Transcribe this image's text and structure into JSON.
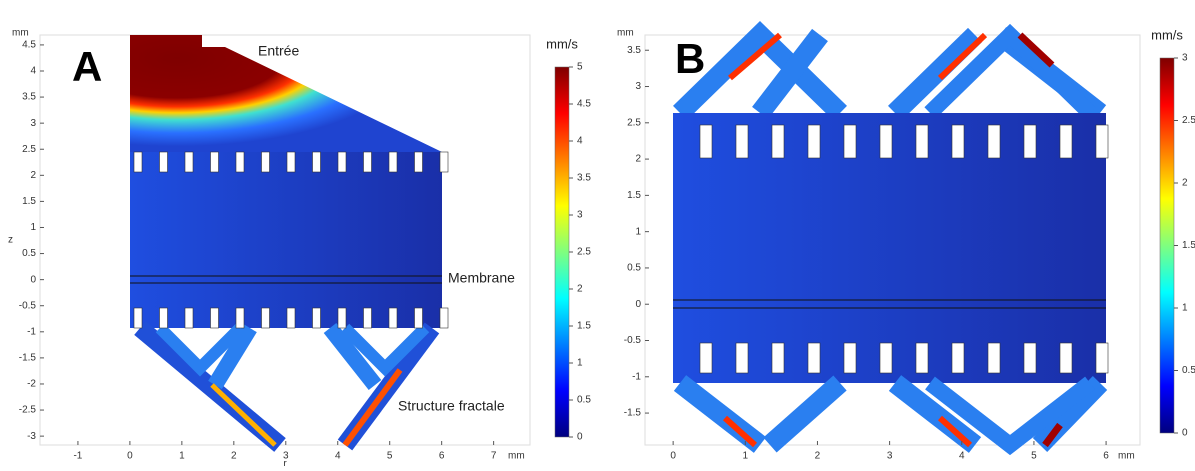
{
  "chart_data": [
    {
      "type": "field",
      "label": "A",
      "x_unit": "mm",
      "y_unit": "mm",
      "xlabel": "r",
      "ylabel": "z",
      "xlim": [
        -1.73,
        7.7
      ],
      "ylim": [
        -3.17,
        4.69
      ],
      "xticks": [
        -1,
        0,
        1,
        2,
        3,
        4,
        5,
        6,
        7
      ],
      "yticks": [
        4.5,
        4,
        3.5,
        3,
        2.5,
        2,
        1.5,
        1,
        0.5,
        0,
        -0.5,
        -1,
        -1.5,
        -2,
        -2.5,
        -3
      ],
      "colorbar": {
        "title": "mm/s",
        "lim": [
          0,
          5
        ],
        "ticks": [
          0,
          0.5,
          1,
          1.5,
          2,
          2.5,
          3,
          3.5,
          4,
          4.5,
          5
        ],
        "colors": [
          "#00007f",
          "#0000ff",
          "#007fff",
          "#00ffff",
          "#7fff7f",
          "#ffff00",
          "#ff7f00",
          "#ff0000",
          "#7f0000"
        ]
      },
      "annotations": [
        "Entrée",
        "Membrane",
        "Structure fractale"
      ]
    },
    {
      "type": "field",
      "label": "B",
      "x_unit": "mm",
      "y_unit": "mm",
      "xlim": [
        -0.39,
        6.47
      ],
      "ylim": [
        -1.94,
        3.71
      ],
      "xticks": [
        0,
        1,
        2,
        3,
        4,
        5,
        6
      ],
      "yticks": [
        3.5,
        3,
        2.5,
        2,
        1.5,
        1,
        0.5,
        0,
        -0.5,
        -1,
        -1.5
      ],
      "colorbar": {
        "title": "mm/s",
        "lim": [
          0,
          3
        ],
        "ticks": [
          0,
          0.5,
          1,
          1.5,
          2,
          2.5,
          3
        ],
        "colors": [
          "#00007f",
          "#0000ff",
          "#007fff",
          "#00ffff",
          "#7fff7f",
          "#ffff00",
          "#ff7f00",
          "#ff0000",
          "#7f0000"
        ]
      }
    }
  ]
}
